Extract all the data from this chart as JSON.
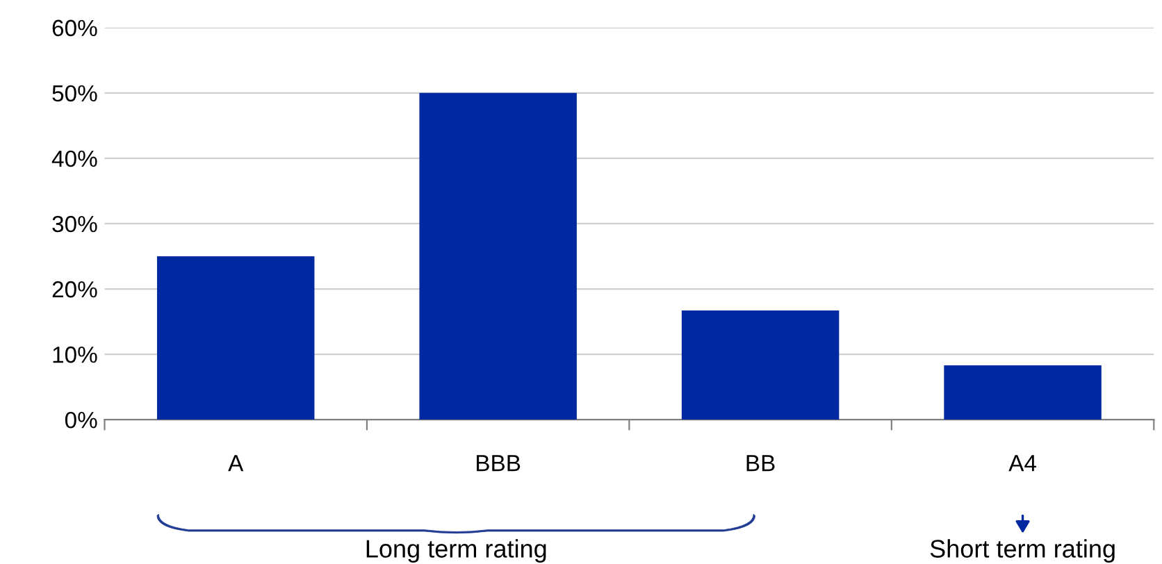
{
  "chart_data": {
    "type": "bar",
    "categories": [
      "A",
      "BBB",
      "BB",
      "A4"
    ],
    "values": [
      25,
      50,
      16.7,
      8.3
    ],
    "color": "#0028a0",
    "ylim": [
      0,
      60
    ],
    "yticks": [
      {
        "value": 0,
        "label": "0%"
      },
      {
        "value": 10,
        "label": "10%"
      },
      {
        "value": 20,
        "label": "20%"
      },
      {
        "value": 30,
        "label": "30%"
      },
      {
        "value": 40,
        "label": "40%"
      },
      {
        "value": 50,
        "label": "50%"
      },
      {
        "value": 60,
        "label": "60%"
      }
    ],
    "grid": "y",
    "legend": false,
    "annotations": [
      "Long term rating",
      "Short term rating"
    ]
  }
}
